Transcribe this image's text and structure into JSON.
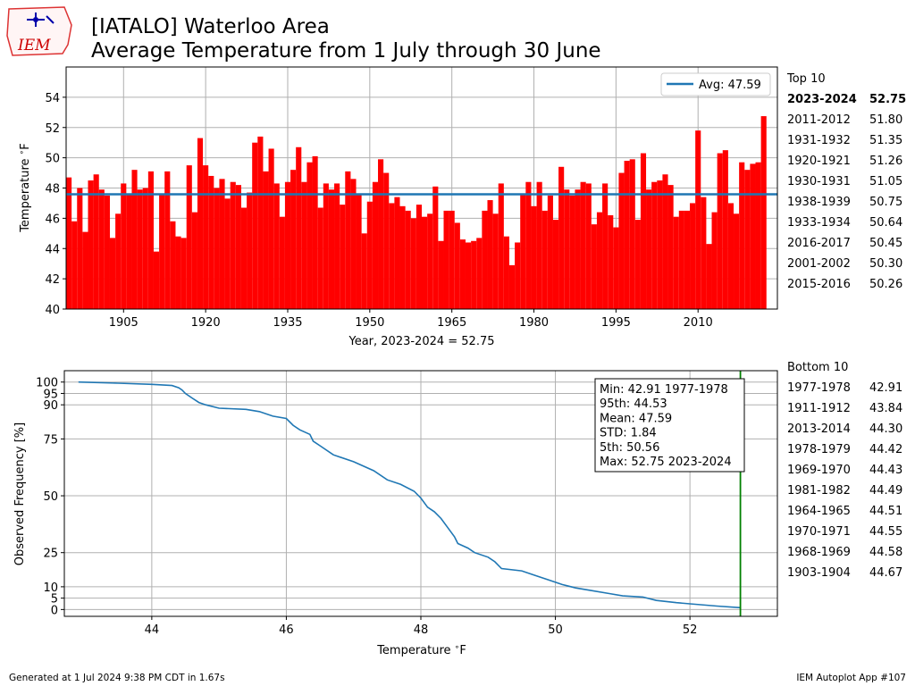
{
  "title_lines": [
    "[IATALO] Waterloo Area",
    "Average Temperature from 1 July through 30 June"
  ],
  "logo_text": "IEM",
  "footer": {
    "left": "Generated at 1 Jul 2024 9:38 PM CDT in 1.67s",
    "right": "IEM Autoplot App #107"
  },
  "colors": {
    "bar": "#ff0000",
    "bar_current": "#008000",
    "avg_line": "#1f77b4",
    "cdf_line": "#1f77b4",
    "marker": "#008000",
    "grid": "#b0b0b0"
  },
  "top10": {
    "title": "Top 10",
    "rows": [
      {
        "season": "2023-2024",
        "value": "52.75",
        "bold": true
      },
      {
        "season": "2011-2012",
        "value": "51.80"
      },
      {
        "season": "1931-1932",
        "value": "51.35"
      },
      {
        "season": "1920-1921",
        "value": "51.26"
      },
      {
        "season": "1930-1931",
        "value": "51.05"
      },
      {
        "season": "1938-1939",
        "value": "50.75"
      },
      {
        "season": "1933-1934",
        "value": "50.64"
      },
      {
        "season": "2016-2017",
        "value": "50.45"
      },
      {
        "season": "2001-2002",
        "value": "50.30"
      },
      {
        "season": "2015-2016",
        "value": "50.26"
      }
    ]
  },
  "bottom10": {
    "title": "Bottom 10",
    "rows": [
      {
        "season": "1977-1978",
        "value": "42.91"
      },
      {
        "season": "1911-1912",
        "value": "43.84"
      },
      {
        "season": "2013-2014",
        "value": "44.30"
      },
      {
        "season": "1978-1979",
        "value": "44.42"
      },
      {
        "season": "1969-1970",
        "value": "44.43"
      },
      {
        "season": "1981-1982",
        "value": "44.49"
      },
      {
        "season": "1964-1965",
        "value": "44.51"
      },
      {
        "season": "1970-1971",
        "value": "44.55"
      },
      {
        "season": "1968-1969",
        "value": "44.58"
      },
      {
        "season": "1903-1904",
        "value": "44.67"
      }
    ]
  },
  "chart_data": [
    {
      "type": "bar",
      "xlabel": "Year, 2023-2024 = 52.75",
      "ylabel": "Temperature $^\\circ$F",
      "xlim": [
        1894.5,
        2024.5
      ],
      "ylim": [
        40,
        56
      ],
      "xticks": [
        1905,
        1920,
        1935,
        1950,
        1965,
        1980,
        1995,
        2010
      ],
      "yticks": [
        40,
        42,
        44,
        46,
        48,
        50,
        52,
        54
      ],
      "grid": true,
      "legend": {
        "label": "Avg: 47.59",
        "placement": "top-right"
      },
      "avg": 47.59,
      "highlight_year": 2023,
      "start_year": 1895,
      "values": [
        48.7,
        45.8,
        48.0,
        45.1,
        48.5,
        48.9,
        47.9,
        47.5,
        44.7,
        46.3,
        48.3,
        47.6,
        49.2,
        47.9,
        48.0,
        49.1,
        43.8,
        47.6,
        49.1,
        45.8,
        44.8,
        44.7,
        49.5,
        46.4,
        51.3,
        49.5,
        48.8,
        48.0,
        48.6,
        47.3,
        48.4,
        48.2,
        46.7,
        47.7,
        51.0,
        51.4,
        49.1,
        50.6,
        48.3,
        46.1,
        48.4,
        49.2,
        50.7,
        48.4,
        49.7,
        50.1,
        46.7,
        48.3,
        47.9,
        48.3,
        46.9,
        49.1,
        48.6,
        47.6,
        45.0,
        47.1,
        48.4,
        49.9,
        49.0,
        47.0,
        47.4,
        46.8,
        46.5,
        46.0,
        46.9,
        46.1,
        46.3,
        48.1,
        44.5,
        46.5,
        46.5,
        45.7,
        44.6,
        44.4,
        44.5,
        44.7,
        46.5,
        47.2,
        46.3,
        48.3,
        44.8,
        42.9,
        44.4,
        47.6,
        48.4,
        46.8,
        48.4,
        46.5,
        47.5,
        45.9,
        49.4,
        47.9,
        47.5,
        47.9,
        48.4,
        48.3,
        45.6,
        46.4,
        48.3,
        46.2,
        45.4,
        49.0,
        49.8,
        49.9,
        45.9,
        50.3,
        47.9,
        48.4,
        48.5,
        48.9,
        48.2,
        46.1,
        46.5,
        46.5,
        47.0,
        51.8,
        47.4,
        44.3,
        46.4,
        50.3,
        50.5,
        47.0,
        46.3,
        49.7,
        49.2,
        49.6,
        49.7,
        52.75
      ]
    },
    {
      "type": "line",
      "xlabel": "Temperature $^\\circ$F",
      "ylabel": "Observed Frequency [%]",
      "xlim": [
        42.7,
        53.3
      ],
      "ylim": [
        -3,
        105
      ],
      "xticks": [
        44,
        46,
        48,
        50,
        52
      ],
      "yticks": [
        0,
        5,
        10,
        25,
        50,
        75,
        90,
        95,
        100
      ],
      "grid": true,
      "marker_x": 52.75,
      "x": [
        42.91,
        43.5,
        44.0,
        44.3,
        44.4,
        44.45,
        44.5,
        44.6,
        44.7,
        44.8,
        45.0,
        45.4,
        45.6,
        45.8,
        46.0,
        46.1,
        46.2,
        46.35,
        46.4,
        46.5,
        46.7,
        47.0,
        47.3,
        47.5,
        47.7,
        47.9,
        48.0,
        48.1,
        48.2,
        48.3,
        48.4,
        48.5,
        48.55,
        48.7,
        48.8,
        49.0,
        49.1,
        49.2,
        49.5,
        49.7,
        49.9,
        50.1,
        50.3,
        50.5,
        50.8,
        51.0,
        51.3,
        51.5,
        51.8,
        52.0,
        52.4,
        52.75
      ],
      "y": [
        100,
        99.5,
        99.0,
        98.5,
        97.5,
        96.5,
        95.0,
        93.0,
        91.0,
        90.0,
        88.5,
        88.0,
        87.0,
        85.0,
        84.0,
        81.0,
        79.0,
        77.0,
        74.0,
        72.0,
        68.0,
        65.0,
        61.0,
        57.0,
        55.0,
        52.0,
        49.0,
        45.0,
        43.0,
        40.0,
        36.0,
        32.0,
        29.0,
        27.0,
        25.0,
        23.0,
        21.0,
        18.0,
        17.0,
        15.0,
        13.0,
        11.0,
        9.5,
        8.5,
        7.0,
        6.0,
        5.5,
        4.0,
        3.0,
        2.5,
        1.5,
        0.8
      ]
    }
  ],
  "stats_box": [
    "Min: 42.91 1977-1978",
    "95th: 44.53",
    "Mean: 47.59",
    "STD: 1.84",
    "5th: 50.56",
    "Max: 52.75 2023-2024"
  ]
}
